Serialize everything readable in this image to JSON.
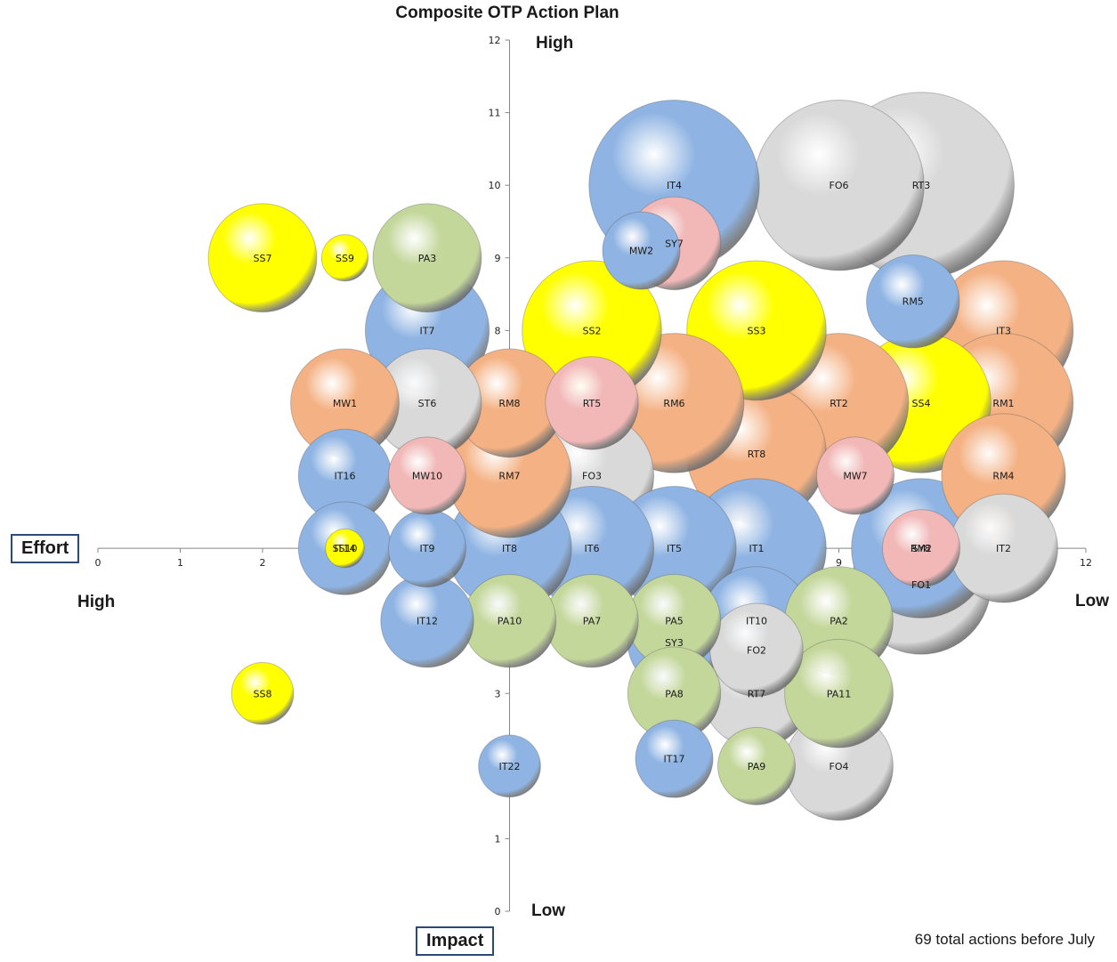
{
  "chart_data": {
    "type": "bubble",
    "title": "Composite OTP Action Plan",
    "x_axis_label": "Effort",
    "y_axis_label": "Impact",
    "x_high_label": "High",
    "x_low_label": "Low",
    "y_high_label": "High",
    "y_low_label": "Low",
    "xlim": [
      0,
      12
    ],
    "ylim": [
      0,
      12
    ],
    "x_ticks": [
      "0",
      "1",
      "2",
      "3",
      "4",
      "5",
      "6",
      "7",
      "8",
      "9",
      "10",
      "11",
      "12"
    ],
    "y_ticks": [
      "0",
      "1",
      "2",
      "3",
      "4",
      "5",
      "6",
      "7",
      "8",
      "9",
      "10",
      "11",
      "12"
    ],
    "note": "69 total actions before July",
    "colors": {
      "blue": "#8fb4e3",
      "white": "#d9d9d9",
      "yellow": "#ffff00",
      "orange": "#f4b183",
      "pink": "#f2b8b8",
      "green": "#c4d79b"
    },
    "points": [
      {
        "label": "RT3",
        "x": 10,
        "y": 10,
        "size": 12,
        "color": "white"
      },
      {
        "label": "FO6",
        "x": 9,
        "y": 10,
        "size": 11,
        "color": "white"
      },
      {
        "label": "IT4",
        "x": 7,
        "y": 10,
        "size": 11,
        "color": "blue"
      },
      {
        "label": "RM5",
        "x": 9.9,
        "y": 8.4,
        "size": 6,
        "color": "blue"
      },
      {
        "label": "MW2",
        "x": 6.6,
        "y": 9.1,
        "size": 5,
        "color": "blue"
      },
      {
        "label": "SY7",
        "x": 7,
        "y": 9.2,
        "size": 6,
        "color": "pink"
      },
      {
        "label": "IT3",
        "x": 11,
        "y": 8,
        "size": 9,
        "color": "orange"
      },
      {
        "label": "RM1",
        "x": 11,
        "y": 7,
        "size": 9,
        "color": "orange"
      },
      {
        "label": "RM4",
        "x": 11,
        "y": 6,
        "size": 8,
        "color": "orange"
      },
      {
        "label": "FO1",
        "x": 10,
        "y": 4.5,
        "size": 9,
        "color": "white"
      },
      {
        "label": "IT2",
        "x": 11,
        "y": 5,
        "size": 7,
        "color": "white"
      },
      {
        "label": "RM2",
        "x": 10,
        "y": 5,
        "size": 9,
        "color": "blue"
      },
      {
        "label": "SY8",
        "x": 10,
        "y": 5,
        "size": 5,
        "color": "pink"
      },
      {
        "label": "SS4",
        "x": 10,
        "y": 7,
        "size": 9,
        "color": "yellow"
      },
      {
        "label": "RT2",
        "x": 9,
        "y": 7,
        "size": 9,
        "color": "orange"
      },
      {
        "label": "MW7",
        "x": 9.2,
        "y": 6,
        "size": 5,
        "color": "pink"
      },
      {
        "label": "RT8",
        "x": 8,
        "y": 6.3,
        "size": 9,
        "color": "orange"
      },
      {
        "label": "SS3",
        "x": 8,
        "y": 8,
        "size": 9,
        "color": "yellow"
      },
      {
        "label": "RM6",
        "x": 7,
        "y": 7,
        "size": 9,
        "color": "orange"
      },
      {
        "label": "RT5",
        "x": 6,
        "y": 7,
        "size": 6,
        "color": "pink"
      },
      {
        "label": "FO3",
        "x": 6,
        "y": 6,
        "size": 8,
        "color": "white"
      },
      {
        "label": "SS2",
        "x": 6,
        "y": 8,
        "size": 9,
        "color": "yellow"
      },
      {
        "label": "IT1",
        "x": 8,
        "y": 5,
        "size": 9,
        "color": "blue"
      },
      {
        "label": "IT5",
        "x": 7,
        "y": 5,
        "size": 8,
        "color": "blue"
      },
      {
        "label": "IT6",
        "x": 6,
        "y": 5,
        "size": 8,
        "color": "blue"
      },
      {
        "label": "IT10",
        "x": 8,
        "y": 4,
        "size": 7,
        "color": "blue"
      },
      {
        "label": "SY3",
        "x": 7,
        "y": 3.7,
        "size": 6,
        "color": "blue"
      },
      {
        "label": "FO2",
        "x": 8,
        "y": 3.6,
        "size": 6,
        "color": "white"
      },
      {
        "label": "RT7",
        "x": 8,
        "y": 3,
        "size": 7,
        "color": "white"
      },
      {
        "label": "FO4",
        "x": 9,
        "y": 2,
        "size": 7,
        "color": "white"
      },
      {
        "label": "PA2",
        "x": 9,
        "y": 4,
        "size": 7,
        "color": "green"
      },
      {
        "label": "PA11",
        "x": 9,
        "y": 3,
        "size": 7,
        "color": "green"
      },
      {
        "label": "PA5",
        "x": 7,
        "y": 4,
        "size": 6,
        "color": "green"
      },
      {
        "label": "PA8",
        "x": 7,
        "y": 3,
        "size": 6,
        "color": "green"
      },
      {
        "label": "IT17",
        "x": 7,
        "y": 2.1,
        "size": 5,
        "color": "blue"
      },
      {
        "label": "PA9",
        "x": 8,
        "y": 2,
        "size": 5,
        "color": "green"
      },
      {
        "label": "PA7",
        "x": 6,
        "y": 4,
        "size": 6,
        "color": "green"
      },
      {
        "label": "IT8",
        "x": 5,
        "y": 5,
        "size": 8,
        "color": "blue"
      },
      {
        "label": "IT9",
        "x": 4,
        "y": 5,
        "size": 5,
        "color": "blue"
      },
      {
        "label": "PA10",
        "x": 5,
        "y": 4,
        "size": 6,
        "color": "green"
      },
      {
        "label": "IT12",
        "x": 4,
        "y": 4,
        "size": 6,
        "color": "blue"
      },
      {
        "label": "IT22",
        "x": 5,
        "y": 2,
        "size": 4,
        "color": "blue"
      },
      {
        "label": "RM7",
        "x": 5,
        "y": 6,
        "size": 8,
        "color": "orange"
      },
      {
        "label": "RM8",
        "x": 5,
        "y": 7,
        "size": 7,
        "color": "orange"
      },
      {
        "label": "MW10",
        "x": 4,
        "y": 6,
        "size": 5,
        "color": "pink"
      },
      {
        "label": "ST6",
        "x": 4,
        "y": 7,
        "size": 7,
        "color": "white"
      },
      {
        "label": "MW1",
        "x": 3,
        "y": 7,
        "size": 7,
        "color": "orange"
      },
      {
        "label": "IT7",
        "x": 4,
        "y": 8,
        "size": 8,
        "color": "blue"
      },
      {
        "label": "PA3",
        "x": 4,
        "y": 9,
        "size": 7,
        "color": "green"
      },
      {
        "label": "IT16",
        "x": 3,
        "y": 6,
        "size": 6,
        "color": "blue"
      },
      {
        "label": "IT14",
        "x": 3,
        "y": 5,
        "size": 6,
        "color": "blue"
      },
      {
        "label": "SS10",
        "x": 3,
        "y": 5,
        "size": 2.5,
        "color": "yellow"
      },
      {
        "label": "SS7",
        "x": 2,
        "y": 9,
        "size": 7,
        "color": "yellow"
      },
      {
        "label": "SS9",
        "x": 3,
        "y": 9,
        "size": 3,
        "color": "yellow"
      },
      {
        "label": "SS8",
        "x": 2,
        "y": 3,
        "size": 4,
        "color": "yellow"
      }
    ],
    "inline_labels": [
      {
        "text": "6",
        "x": 5,
        "y": 6
      },
      {
        "text": "7",
        "x": 5,
        "y": 7
      },
      {
        "text": "8",
        "x": 5,
        "y": 8
      },
      {
        "text": "5",
        "x": 5,
        "y": 5
      },
      {
        "text": "4",
        "x": 5,
        "y": 4
      },
      {
        "text": "2",
        "x": 5,
        "y": 2
      },
      {
        "text": "3",
        "x": 3,
        "y": 5
      },
      {
        "text": "3",
        "x": 5,
        "y": 3
      }
    ]
  }
}
